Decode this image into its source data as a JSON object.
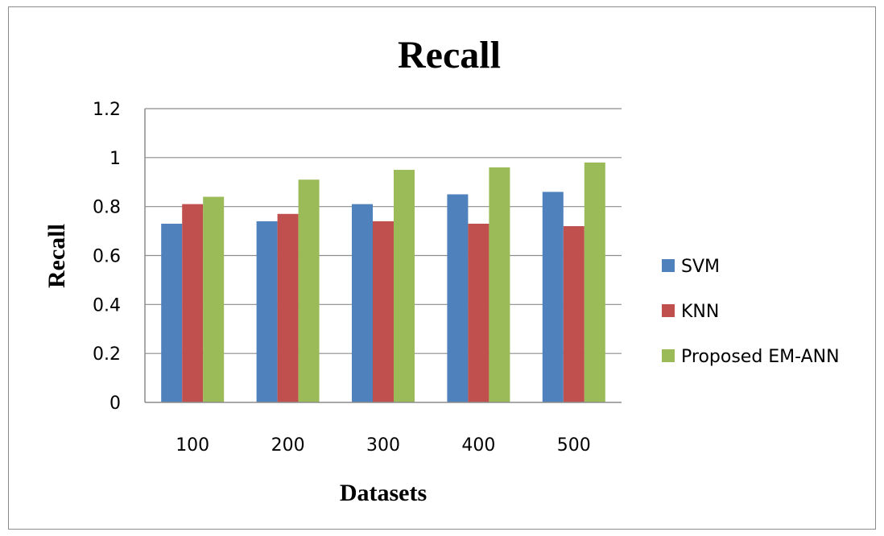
{
  "chart_data": {
    "type": "bar",
    "title": "Recall",
    "xlabel": "Datasets",
    "ylabel": "Recall",
    "categories": [
      "100",
      "200",
      "300",
      "400",
      "500"
    ],
    "series": [
      {
        "name": "SVM",
        "color": "#4f81bd",
        "values": [
          0.73,
          0.74,
          0.81,
          0.85,
          0.86
        ]
      },
      {
        "name": "KNN",
        "color": "#c0504d",
        "values": [
          0.81,
          0.77,
          0.74,
          0.73,
          0.72
        ]
      },
      {
        "name": "Proposed EM-ANN",
        "color": "#9bbb59",
        "values": [
          0.84,
          0.91,
          0.95,
          0.96,
          0.98
        ]
      }
    ],
    "ylim": [
      0,
      1.2
    ],
    "yticks": [
      "0",
      "0.2",
      "0.4",
      "0.6",
      "0.8",
      "1",
      "1.2"
    ],
    "grid": true,
    "legend_position": "right"
  }
}
